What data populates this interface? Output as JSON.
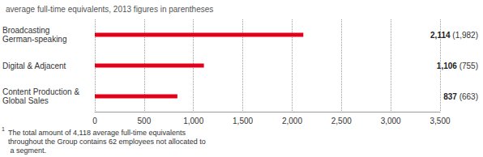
{
  "chart_data": {
    "type": "bar",
    "orientation": "horizontal",
    "subtitle": "average full-time equivalents, 2013 figures in parentheses",
    "categories": [
      "Broadcasting German-speaking",
      "Digital & Adjacent",
      "Content Production & Global Sales"
    ],
    "values": [
      2114,
      1106,
      837
    ],
    "value_labels": [
      "2,114",
      "1,106",
      "837"
    ],
    "values_2013_labels": [
      "(1,982)",
      "(755)",
      "(663)"
    ],
    "color": "#e2001a",
    "xlim": [
      0,
      3500
    ],
    "xticks": [
      0,
      500,
      {
        "value": 1000,
        "label": "1,000"
      },
      {
        "value": 1500,
        "label": "1,500"
      },
      {
        "value": 2000,
        "label": "2,000"
      },
      {
        "value": 2500,
        "label": "2,500"
      },
      {
        "value": 3000,
        "label": "3,000"
      },
      {
        "value": 3500,
        "label": "3,500"
      }
    ],
    "grid": true,
    "data_labels": true,
    "footnote_marker": "1",
    "footnote": "The total amount of 4,118 average full-time equivalents throughout the Group contains 62 employees not allocated to a segment."
  }
}
